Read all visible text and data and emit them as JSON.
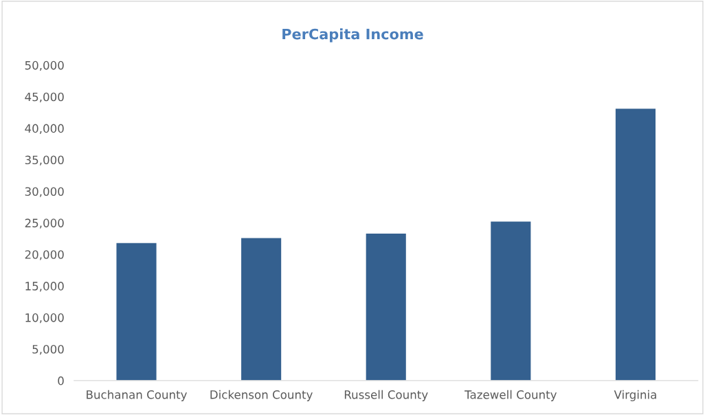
{
  "chart_data": {
    "type": "bar",
    "title": "PerCapita Income",
    "categories": [
      "Buchanan County",
      "Dickenson County",
      "Russell County",
      "Tazewell County",
      "Virginia"
    ],
    "values": [
      21800,
      22600,
      23300,
      25200,
      43100
    ],
    "color": "#34608f",
    "ylim": [
      0,
      50000
    ],
    "yticks": [
      {
        "value": 0,
        "label": "0"
      },
      {
        "value": 5000,
        "label": "5,000"
      },
      {
        "value": 10000,
        "label": "10,000"
      },
      {
        "value": 15000,
        "label": "15,000"
      },
      {
        "value": 20000,
        "label": "20,000"
      },
      {
        "value": 25000,
        "label": "25,000"
      },
      {
        "value": 30000,
        "label": "30,000"
      },
      {
        "value": 35000,
        "label": "35,000"
      },
      {
        "value": 40000,
        "label": "40,000"
      },
      {
        "value": 45000,
        "label": "45,000"
      },
      {
        "value": 50000,
        "label": "50,000"
      }
    ],
    "grid": false,
    "legend": false
  }
}
